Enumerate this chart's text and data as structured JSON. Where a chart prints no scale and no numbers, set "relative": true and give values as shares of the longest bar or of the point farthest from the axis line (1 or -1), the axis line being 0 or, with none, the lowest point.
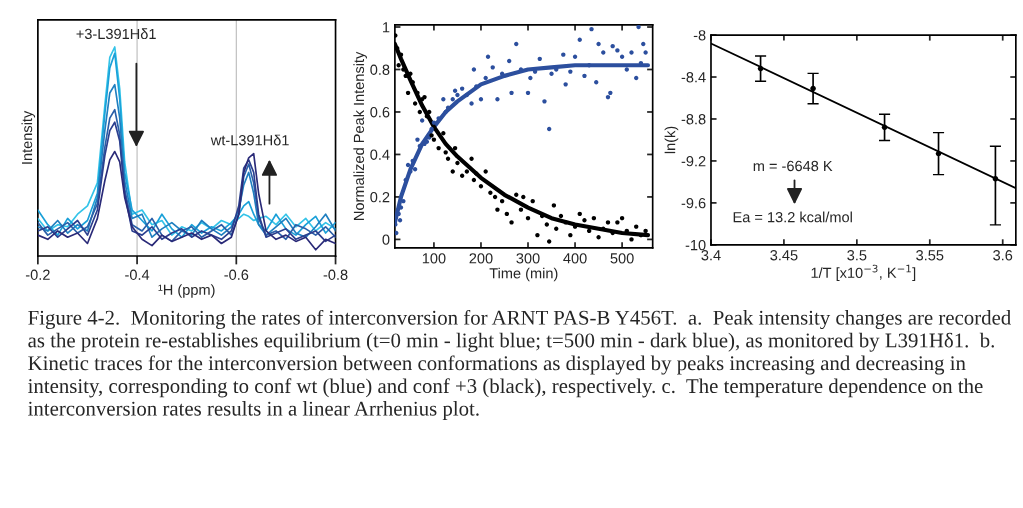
{
  "chart_data": [
    {
      "type": "line",
      "relative": true,
      "xlabel": "¹H (ppm)",
      "ylabel": "Intensity",
      "xlim": [
        -0.2,
        -0.8
      ],
      "xticks": [
        -0.2,
        -0.4,
        -0.6,
        -0.8
      ],
      "grid": "x",
      "tick_labels": "x",
      "marker": "none",
      "line_style": "solid",
      "annotations": [
        "+3-L391Hδ1",
        "wt-L391Hδ1"
      ],
      "x": [
        -0.2,
        -0.22,
        -0.24,
        -0.26,
        -0.28,
        -0.3,
        -0.32,
        -0.335,
        -0.345,
        -0.355,
        -0.365,
        -0.375,
        -0.39,
        -0.41,
        -0.43,
        -0.45,
        -0.47,
        -0.49,
        -0.51,
        -0.53,
        -0.55,
        -0.57,
        -0.59,
        -0.605,
        -0.615,
        -0.625,
        -0.635,
        -0.645,
        -0.66,
        -0.68,
        -0.7,
        -0.72,
        -0.74,
        -0.76,
        -0.78,
        -0.8
      ],
      "series": [
        {
          "color": "#33c3e8",
          "values": [
            0.18,
            0.12,
            0.15,
            0.14,
            0.2,
            0.24,
            0.35,
            0.72,
            0.95,
            1.0,
            0.8,
            0.45,
            0.2,
            0.22,
            0.15,
            0.17,
            0.1,
            0.14,
            0.12,
            0.16,
            0.13,
            0.17,
            0.15,
            0.18,
            0.2,
            0.19,
            0.17,
            0.18,
            0.19,
            0.15,
            0.2,
            0.14,
            0.18,
            0.12,
            0.16,
            0.13
          ]
        },
        {
          "color": "#1aa0d8",
          "values": [
            0.22,
            0.15,
            0.1,
            0.18,
            0.13,
            0.17,
            0.3,
            0.68,
            0.9,
            0.97,
            0.75,
            0.4,
            0.22,
            0.17,
            0.12,
            0.2,
            0.13,
            0.09,
            0.15,
            0.11,
            0.14,
            0.12,
            0.16,
            0.2,
            0.24,
            0.26,
            0.2,
            0.15,
            0.12,
            0.2,
            0.13,
            0.1,
            0.15,
            0.19,
            0.11,
            0.16
          ]
        },
        {
          "color": "#1f7fc0",
          "values": [
            0.14,
            0.12,
            0.17,
            0.11,
            0.15,
            0.12,
            0.28,
            0.6,
            0.78,
            0.82,
            0.66,
            0.36,
            0.18,
            0.2,
            0.09,
            0.13,
            0.16,
            0.12,
            0.1,
            0.17,
            0.13,
            0.1,
            0.14,
            0.22,
            0.34,
            0.4,
            0.3,
            0.15,
            0.1,
            0.14,
            0.18,
            0.11,
            0.09,
            0.14,
            0.2,
            0.12
          ]
        },
        {
          "color": "#2a5fa8",
          "values": [
            0.16,
            0.1,
            0.13,
            0.16,
            0.11,
            0.14,
            0.25,
            0.52,
            0.66,
            0.7,
            0.58,
            0.32,
            0.15,
            0.12,
            0.18,
            0.1,
            0.07,
            0.12,
            0.14,
            0.09,
            0.12,
            0.15,
            0.1,
            0.2,
            0.38,
            0.44,
            0.35,
            0.18,
            0.1,
            0.12,
            0.08,
            0.15,
            0.13,
            0.1,
            0.14,
            0.09
          ]
        },
        {
          "color": "#2b3f8f",
          "values": [
            0.12,
            0.14,
            0.09,
            0.13,
            0.17,
            0.1,
            0.22,
            0.48,
            0.6,
            0.64,
            0.55,
            0.3,
            0.12,
            0.1,
            0.14,
            0.08,
            0.11,
            0.13,
            0.09,
            0.12,
            0.1,
            0.08,
            0.12,
            0.24,
            0.42,
            0.46,
            0.4,
            0.2,
            0.09,
            0.11,
            0.13,
            0.08,
            0.1,
            0.12,
            0.07,
            0.1
          ]
        },
        {
          "color": "#2a2a78",
          "values": [
            0.1,
            0.08,
            0.12,
            0.09,
            0.11,
            0.06,
            0.18,
            0.36,
            0.46,
            0.5,
            0.45,
            0.28,
            0.14,
            0.08,
            0.05,
            0.1,
            0.07,
            0.09,
            0.11,
            0.08,
            0.1,
            0.06,
            0.09,
            0.2,
            0.4,
            0.47,
            0.49,
            0.3,
            0.12,
            0.08,
            0.1,
            0.07,
            0.09,
            0.03,
            0.08,
            0.06
          ]
        }
      ]
    },
    {
      "type": "scatter",
      "xlabel": "Time (min)",
      "ylabel": "Normalized Peak Intensity",
      "xlim": [
        17,
        565
      ],
      "ylim": [
        -0.04,
        1.01
      ],
      "xticks": [
        100,
        200,
        300,
        400,
        500
      ],
      "yticks": [
        0,
        0.2,
        0.4,
        0.6,
        0.8,
        1
      ],
      "series": [
        {
          "color": "#2c4f9e",
          "marker": "circle",
          "x": [
            18,
            20,
            25,
            28,
            30,
            35,
            40,
            45,
            50,
            55,
            60,
            65,
            70,
            75,
            80,
            85,
            90,
            95,
            100,
            110,
            120,
            125,
            130,
            140,
            145,
            150,
            160,
            170,
            180,
            185,
            190,
            200,
            210,
            215,
            225,
            235,
            245,
            260,
            265,
            275,
            285,
            300,
            305,
            315,
            325,
            335,
            345,
            350,
            360,
            375,
            380,
            390,
            400,
            410,
            420,
            430,
            435,
            445,
            450,
            460,
            470,
            475,
            480,
            490,
            500,
            510,
            520,
            530,
            535,
            540,
            545,
            550
          ],
          "values": [
            0.07,
            0.03,
            0.12,
            0.09,
            0.15,
            0.18,
            0.28,
            0.35,
            0.32,
            0.37,
            0.33,
            0.47,
            0.44,
            0.56,
            0.45,
            0.46,
            0.48,
            0.52,
            0.55,
            0.57,
            0.66,
            0.6,
            0.62,
            0.66,
            0.7,
            0.68,
            0.71,
            0.68,
            0.64,
            0.8,
            0.72,
            0.66,
            0.76,
            0.86,
            0.81,
            0.66,
            0.78,
            0.84,
            0.69,
            0.92,
            0.8,
            0.69,
            0.76,
            0.79,
            0.85,
            0.65,
            0.52,
            0.78,
            0.8,
            0.87,
            0.73,
            0.79,
            0.86,
            0.94,
            0.77,
            0.82,
            0.99,
            0.74,
            0.92,
            0.88,
            0.67,
            0.69,
            0.91,
            0.89,
            0.86,
            0.8,
            0.88,
            0.76,
            1.0,
            0.83,
            0.92,
            0.88
          ]
        },
        {
          "color": "#000000",
          "marker": "circle",
          "x": [
            18,
            22,
            25,
            30,
            35,
            40,
            45,
            50,
            55,
            60,
            65,
            70,
            75,
            80,
            85,
            90,
            95,
            100,
            110,
            120,
            125,
            130,
            140,
            145,
            150,
            160,
            170,
            180,
            185,
            190,
            200,
            210,
            220,
            230,
            235,
            245,
            255,
            265,
            275,
            285,
            290,
            300,
            310,
            320,
            330,
            340,
            345,
            355,
            360,
            370,
            380,
            390,
            400,
            410,
            420,
            430,
            440,
            450,
            460,
            470,
            480,
            490,
            500,
            510,
            520,
            530,
            540,
            550
          ],
          "values": [
            0.96,
            0.9,
            0.82,
            0.87,
            0.8,
            0.77,
            0.69,
            0.78,
            0.74,
            0.64,
            0.69,
            0.6,
            0.66,
            0.67,
            0.58,
            0.6,
            0.49,
            0.47,
            0.43,
            0.5,
            0.41,
            0.38,
            0.32,
            0.43,
            0.36,
            0.3,
            0.32,
            0.38,
            0.28,
            0.31,
            0.25,
            0.32,
            0.22,
            0.2,
            0.14,
            0.18,
            0.12,
            0.08,
            0.21,
            0.14,
            0.2,
            0.1,
            0.18,
            0.02,
            0.11,
            0.07,
            -0.01,
            0.16,
            0.05,
            0.11,
            0.08,
            0.02,
            0.06,
            0.12,
            0.09,
            0.04,
            0.1,
            0.01,
            0.05,
            0.08,
            0.03,
            0.08,
            0.1,
            0.04,
            0.0,
            0.06,
            0.02,
            0.04
          ]
        },
        {
          "type": "line",
          "color": "#2c4f9e",
          "x": [
            17,
            30,
            50,
            75,
            100,
            125,
            150,
            200,
            250,
            300,
            350,
            400,
            450,
            500,
            555
          ],
          "values": [
            0.08,
            0.2,
            0.33,
            0.45,
            0.53,
            0.6,
            0.65,
            0.73,
            0.77,
            0.8,
            0.81,
            0.82,
            0.82,
            0.82,
            0.82
          ]
        },
        {
          "type": "line",
          "color": "#000000",
          "x": [
            17,
            30,
            50,
            75,
            100,
            125,
            150,
            200,
            250,
            300,
            350,
            400,
            450,
            500,
            555
          ],
          "values": [
            0.92,
            0.85,
            0.75,
            0.63,
            0.53,
            0.45,
            0.39,
            0.29,
            0.21,
            0.15,
            0.1,
            0.07,
            0.05,
            0.03,
            0.02
          ]
        }
      ]
    },
    {
      "type": "scatter",
      "xlabel": "1/T [x10$^{−3}$, K$^{−1}$]",
      "ylabel": "ln(k)",
      "xlim": [
        3.4,
        3.609
      ],
      "ylim": [
        -10,
        -8
      ],
      "xticks": [
        3.4,
        3.45,
        3.5,
        3.55,
        3.6
      ],
      "yticks": [
        -8,
        -8.4,
        -8.8,
        -9.2,
        -9.6,
        -10
      ],
      "annotations": [
        "m = -6648 K",
        "Ea = 13.2 kcal/mol"
      ],
      "series": [
        {
          "color": "#000000",
          "marker": "circle",
          "x": [
            3.434,
            3.47,
            3.519,
            3.556,
            3.595
          ],
          "values": [
            -8.32,
            -8.51,
            -8.88,
            -9.13,
            -9.37
          ],
          "errors": [
            0.12,
            0.145,
            0.125,
            0.2,
            [
              -9.81,
              -9.06
            ]
          ]
        },
        {
          "type": "line",
          "color": "#000000",
          "x": [
            3.4,
            3.609
          ],
          "values": [
            -8.08,
            -9.46
          ]
        }
      ]
    },
    {
      "type": "other",
      "annotations": [
        "Figure 4-2.  Monitoring the rates of interconversion for ARNT PAS-B Y456T.  a.  Peak intensity changes are recorded as the protein re-establishes equilibrium (t=0 min - light blue; t=500 min - dark blue), as monitored by L391Hδ1.  b.  Kinetic traces for the interconversion between conformations as displayed by peaks increasing and decreasing in intensity, corresponding to conf wt (blue) and conf +3 (black), respectively. c.  The temperature dependence on the interconversion rates results in a linear Arrhenius plot."
      ]
    }
  ]
}
